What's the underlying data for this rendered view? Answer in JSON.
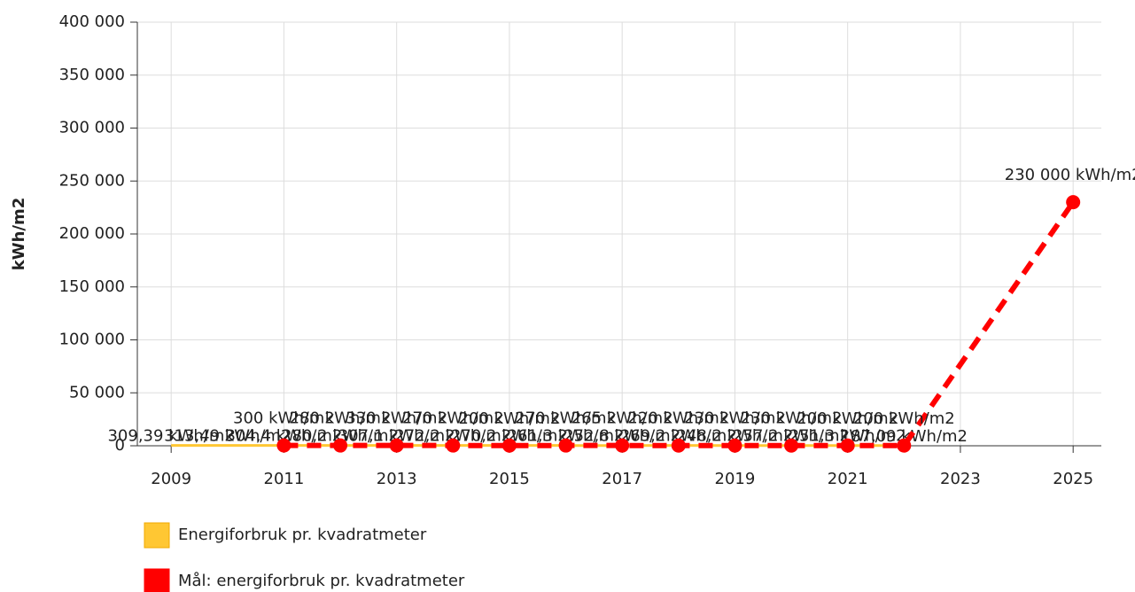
{
  "chart_data": {
    "type": "line",
    "y_label": "kWh/m2",
    "xlim": [
      2008.4,
      2025.5
    ],
    "xticks": [
      2009,
      2011,
      2013,
      2015,
      2017,
      2019,
      2021,
      2023,
      2025
    ],
    "ylim": [
      0,
      400000
    ],
    "yticks": [
      0,
      {
        "value": 50000,
        "label": "50 000"
      },
      {
        "value": 100000,
        "label": "100 000"
      },
      {
        "value": 150000,
        "label": "150 000"
      },
      {
        "value": 200000,
        "label": "200 000"
      },
      {
        "value": 250000,
        "label": "250 000"
      },
      {
        "value": 300000,
        "label": "300 000"
      },
      {
        "value": 350000,
        "label": "350 000"
      },
      {
        "value": 400000,
        "label": "400 000"
      }
    ],
    "grid": true,
    "series": [
      {
        "name": "Energiforbruk pr. kvadratmeter",
        "color": "#ffc733",
        "x": [
          2009,
          2010,
          2011,
          2012,
          2013,
          2014,
          2015,
          2016,
          2017,
          2018,
          2019,
          2020,
          2021,
          2022
        ],
        "values": [
          309.39,
          313.49,
          304.4,
          280.2,
          307.1,
          272.2,
          270.2,
          261.3,
          252.8,
          269.2,
          248.2,
          257.2,
          251.3,
          187.09
        ],
        "value_labels": [
          "309,39 kWh/m2",
          "313,49 kWh/m2",
          "304,4 kWh/m2",
          "280,2 kWh/m2",
          "307,1 kWh/m2",
          "272,2 kWh/m2",
          "270,2 kWh/m2",
          "261,3 kWh/m2",
          "252,8 kWh/m2",
          "269,2 kWh/m2",
          "248,2 kWh/m2",
          "257,2 kWh/m2",
          "251,3 kWh/m2",
          "187,09 kWh/m2"
        ]
      },
      {
        "name": "Mål: energiforbruk pr. kvadratmeter",
        "color": "#ff0000",
        "x": [
          2011,
          2012,
          2013,
          2014,
          2015,
          2016,
          2017,
          2018,
          2019,
          2020,
          2021,
          2022,
          2025
        ],
        "values": [
          300,
          280,
          330,
          270,
          200,
          270,
          265,
          220,
          230,
          230,
          200,
          200,
          230000
        ],
        "value_labels": [
          "300 kWh/m2",
          "280 kWh/m2",
          "330 kWh/m2",
          "270 kWh/m2",
          "200 kWh/m2",
          "270 kWh/m2",
          "265 kWh/m2",
          "220 kWh/m2",
          "230 kWh/m2",
          "230 kWh/m2",
          "200 kWh/m2",
          "200 kWh/m2",
          "230 000 kWh/m2"
        ]
      }
    ]
  }
}
